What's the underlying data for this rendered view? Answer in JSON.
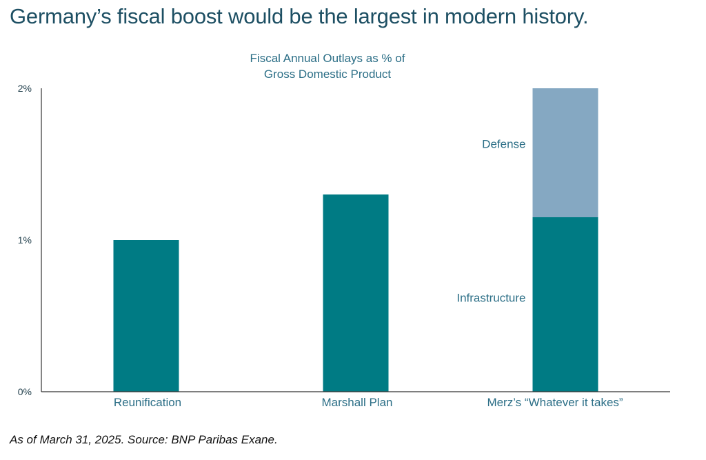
{
  "headline": "Germany’s fiscal boost would be the largest in modern history.",
  "footnote": "As of March 31, 2025. Source: BNP Paribas Exane.",
  "colors": {
    "headline": "#1d4f63",
    "bar_primary": "#007b84",
    "bar_defense": "#85a8c2",
    "text_accent": "#2b6e86",
    "axis": "#333333"
  },
  "chart_data": {
    "type": "bar",
    "stacked": true,
    "title_lines": [
      "Fiscal Annual Outlays as % of",
      "Gross Domestic Product"
    ],
    "categories": [
      "Reunification",
      "Marshall Plan",
      "Merz’s “Whatever it takes”"
    ],
    "series": [
      {
        "name": "Infrastructure",
        "values": [
          1.0,
          1.3,
          1.15
        ]
      },
      {
        "name": "Defense",
        "values": [
          0,
          0,
          0.85
        ]
      }
    ],
    "segment_labels": [
      {
        "text": "Infrastructure",
        "category_index": 2,
        "series_index": 0
      },
      {
        "text": "Defense",
        "category_index": 2,
        "series_index": 1
      }
    ],
    "yticks": [
      {
        "value": 0,
        "label": "0%"
      },
      {
        "value": 1,
        "label": "1%"
      },
      {
        "value": 2,
        "label": "2%"
      }
    ],
    "ylim": [
      0,
      2
    ],
    "grid": false,
    "legend": "none"
  }
}
